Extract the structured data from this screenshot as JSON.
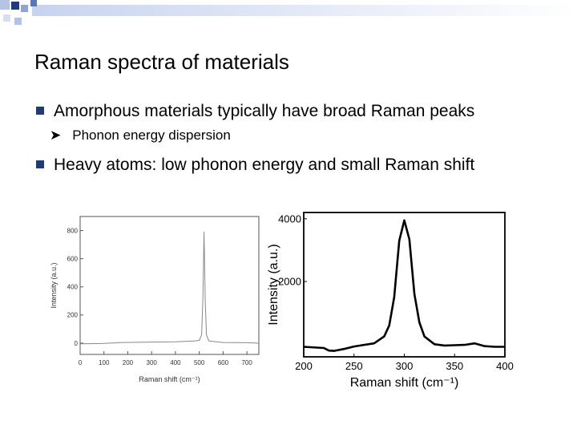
{
  "slide": {
    "title": "Raman spectra of materials",
    "bullets": [
      "Amorphous materials typically have broad Raman peaks",
      "Heavy atoms: low phonon energy and small Raman shift"
    ],
    "sub_bullet": "Phonon energy dispersion",
    "accent_color": "#1f3a7a"
  },
  "chart_data": [
    {
      "type": "line",
      "xlabel": "Raman shift (cm⁻¹)",
      "ylabel": "Intensity (a.u.)",
      "xlim": [
        0,
        750
      ],
      "ylim": [
        -80,
        900
      ],
      "xticks": [
        "0",
        "100",
        "200",
        "300",
        "400",
        "500",
        "600",
        "700"
      ],
      "yticks": [
        "0",
        "200",
        "400",
        "600",
        "800"
      ],
      "series": [
        {
          "x": [
            0,
            100,
            180,
            300,
            400,
            480,
            500,
            510,
            515,
            520,
            525,
            530,
            540,
            600,
            700,
            750
          ],
          "y": [
            -5,
            -2,
            5,
            8,
            10,
            15,
            20,
            60,
            300,
            790,
            300,
            60,
            15,
            5,
            3,
            0
          ]
        }
      ]
    },
    {
      "type": "line",
      "xlabel": "Raman shift (cm⁻¹)",
      "ylabel": "Intensity (a.u.)",
      "xlim": [
        200,
        400
      ],
      "ylim": [
        -400,
        4200
      ],
      "xticks": [
        "200",
        "250",
        "300",
        "350",
        "400"
      ],
      "yticks": [
        "2000",
        "4000"
      ],
      "series": [
        {
          "x": [
            200,
            220,
            225,
            230,
            240,
            250,
            260,
            270,
            280,
            285,
            290,
            295,
            300,
            305,
            310,
            315,
            320,
            330,
            340,
            350,
            360,
            370,
            380,
            390,
            400
          ],
          "y": [
            -80,
            -120,
            -200,
            -210,
            -150,
            -70,
            -20,
            30,
            250,
            600,
            1500,
            3300,
            3950,
            3350,
            1600,
            700,
            250,
            0,
            -40,
            -30,
            -20,
            30,
            -60,
            -80,
            -80
          ]
        }
      ]
    }
  ]
}
